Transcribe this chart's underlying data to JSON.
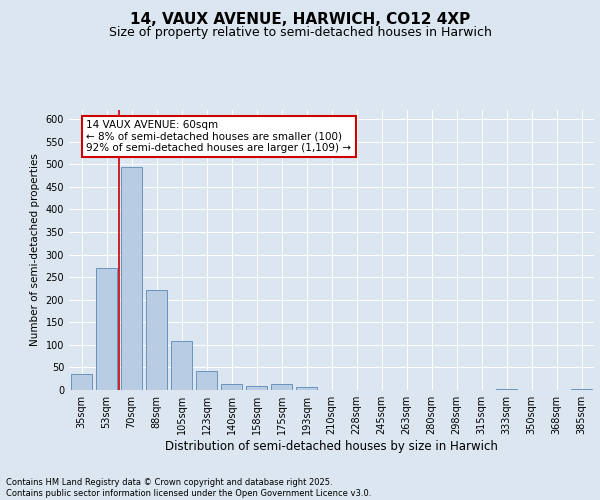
{
  "title1": "14, VAUX AVENUE, HARWICH, CO12 4XP",
  "title2": "Size of property relative to semi-detached houses in Harwich",
  "xlabel": "Distribution of semi-detached houses by size in Harwich",
  "ylabel": "Number of semi-detached properties",
  "categories": [
    "35sqm",
    "53sqm",
    "70sqm",
    "88sqm",
    "105sqm",
    "123sqm",
    "140sqm",
    "158sqm",
    "175sqm",
    "193sqm",
    "210sqm",
    "228sqm",
    "245sqm",
    "263sqm",
    "280sqm",
    "298sqm",
    "315sqm",
    "333sqm",
    "350sqm",
    "368sqm",
    "385sqm"
  ],
  "values": [
    35,
    270,
    493,
    222,
    108,
    42,
    13,
    9,
    14,
    6,
    1,
    1,
    0,
    0,
    0,
    0,
    0,
    2,
    0,
    1,
    2
  ],
  "bar_color": "#b8cce4",
  "bar_edge_color": "#5a8ab5",
  "annotation_title": "14 VAUX AVENUE: 60sqm",
  "annotation_line1": "← 8% of semi-detached houses are smaller (100)",
  "annotation_line2": "92% of semi-detached houses are larger (1,109) →",
  "annotation_box_color": "#ffffff",
  "annotation_box_edge_color": "#cc0000",
  "red_line_color": "#cc0000",
  "background_color": "#dce6f1",
  "plot_bg_color": "#dce6f1",
  "ylim": [
    0,
    620
  ],
  "yticks": [
    0,
    50,
    100,
    150,
    200,
    250,
    300,
    350,
    400,
    450,
    500,
    550,
    600
  ],
  "footer": "Contains HM Land Registry data © Crown copyright and database right 2025.\nContains public sector information licensed under the Open Government Licence v3.0.",
  "title1_fontsize": 11,
  "title2_fontsize": 9,
  "xlabel_fontsize": 8.5,
  "ylabel_fontsize": 7.5,
  "tick_fontsize": 7,
  "annotation_fontsize": 7.5,
  "footer_fontsize": 6
}
